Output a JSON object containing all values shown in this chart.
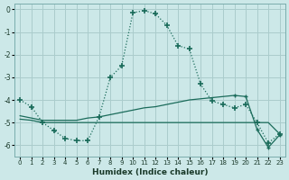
{
  "xlabel": "Humidex (Indice chaleur)",
  "background_color": "#cce8e8",
  "grid_color": "#aacccc",
  "line_color": "#1a6b5a",
  "xlim": [
    -0.5,
    23.5
  ],
  "ylim": [
    -6.5,
    0.25
  ],
  "xticks": [
    0,
    1,
    2,
    3,
    4,
    5,
    6,
    7,
    8,
    9,
    10,
    11,
    12,
    13,
    14,
    15,
    16,
    17,
    18,
    19,
    20,
    21,
    22,
    23
  ],
  "yticks": [
    0,
    -1,
    -2,
    -3,
    -4,
    -5,
    -6
  ],
  "curve1_x": [
    0,
    1,
    2,
    3,
    4,
    5,
    6,
    7,
    8,
    9,
    10,
    11,
    12,
    13,
    14,
    15,
    16,
    17,
    18,
    19,
    20,
    21,
    22,
    23
  ],
  "curve1_y": [
    -4.0,
    -4.3,
    -5.0,
    -5.35,
    -5.7,
    -5.8,
    -5.8,
    -4.75,
    -3.0,
    -2.5,
    -0.15,
    -0.05,
    -0.2,
    -0.7,
    -1.6,
    -1.75,
    -3.3,
    -4.05,
    -4.2,
    -4.35,
    -4.2,
    -5.0,
    -5.9,
    -5.5
  ],
  "curve2_x": [
    0,
    1,
    2,
    3,
    4,
    5,
    6,
    7,
    8,
    9,
    10,
    11,
    12,
    13,
    14,
    15,
    16,
    17,
    18,
    19,
    20,
    21,
    22,
    23
  ],
  "curve2_y": [
    -4.85,
    -4.9,
    -5.0,
    -5.0,
    -5.0,
    -5.0,
    -5.0,
    -5.0,
    -5.0,
    -5.0,
    -5.0,
    -5.0,
    -5.0,
    -5.0,
    -5.0,
    -5.0,
    -5.0,
    -5.0,
    -5.0,
    -5.0,
    -5.0,
    -5.0,
    -5.0,
    -5.5
  ],
  "curve3_x": [
    0,
    1,
    2,
    3,
    4,
    5,
    6,
    7,
    8,
    9,
    10,
    11,
    12,
    13,
    14,
    15,
    16,
    17,
    18,
    19,
    20,
    21,
    22,
    23
  ],
  "curve3_y": [
    -4.7,
    -4.8,
    -4.9,
    -4.9,
    -4.9,
    -4.9,
    -4.8,
    -4.75,
    -4.65,
    -4.55,
    -4.45,
    -4.35,
    -4.3,
    -4.2,
    -4.1,
    -4.0,
    -3.95,
    -3.9,
    -3.85,
    -3.8,
    -3.85,
    -5.3,
    -6.1,
    -5.55
  ]
}
